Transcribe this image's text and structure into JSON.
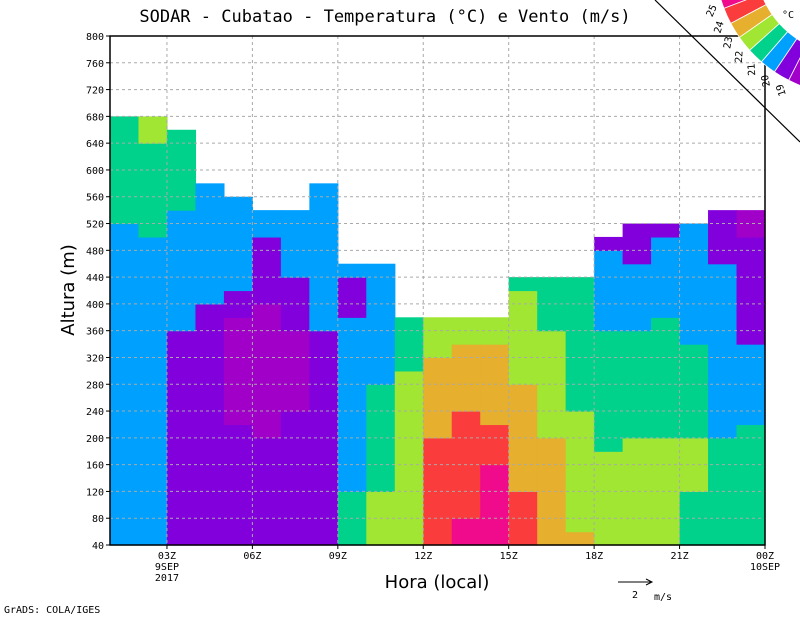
{
  "chart_data": {
    "type": "heatmap",
    "title": "SODAR - Cubatao - Temperatura (°C) e Vento (m/s)",
    "xlabel": "Hora (local)",
    "ylabel": "Altura (m)",
    "ylim": [
      40,
      800
    ],
    "yticks": [
      40,
      80,
      120,
      160,
      200,
      240,
      280,
      320,
      360,
      400,
      440,
      480,
      520,
      560,
      600,
      640,
      680,
      720,
      760,
      800
    ],
    "xlim_hours": [
      1,
      24
    ],
    "xticks": [
      {
        "hour": 3,
        "label": "03Z",
        "sub1": "9SEP",
        "sub2": "2017"
      },
      {
        "hour": 6,
        "label": "06Z"
      },
      {
        "hour": 9,
        "label": "09Z"
      },
      {
        "hour": 12,
        "label": "12Z"
      },
      {
        "hour": 15,
        "label": "15Z"
      },
      {
        "hour": 18,
        "label": "18Z"
      },
      {
        "hour": 21,
        "label": "21Z"
      },
      {
        "hour": 24,
        "label": "00Z",
        "sub1": "10SEP"
      }
    ],
    "grid": true,
    "legend": {
      "unit": "°C",
      "placement": "top-right",
      "boundaries": [
        "25",
        "24",
        "23",
        "22",
        "21",
        "20",
        "19"
      ],
      "classes": [
        {
          "cls": 25,
          "color": "#f00a8c"
        },
        {
          "cls": 24,
          "color": "#fa3c3c"
        },
        {
          "cls": 23,
          "color": "#e6af2d"
        },
        {
          "cls": 22,
          "color": "#a0e632"
        },
        {
          "cls": 21,
          "color": "#00d28c"
        },
        {
          "cls": 20,
          "color": "#00a0ff"
        },
        {
          "cls": 19,
          "color": "#8200dc"
        },
        {
          "cls": 18,
          "color": "#a000c8"
        }
      ]
    },
    "columns": [
      {
        "hour": 1,
        "segments": [
          [
            40,
            520,
            20
          ],
          [
            520,
            680,
            21
          ]
        ]
      },
      {
        "hour": 2,
        "segments": [
          [
            40,
            500,
            20
          ],
          [
            500,
            640,
            21
          ],
          [
            640,
            680,
            22
          ]
        ]
      },
      {
        "hour": 3,
        "segments": [
          [
            40,
            360,
            19
          ],
          [
            360,
            540,
            20
          ],
          [
            540,
            660,
            21
          ]
        ]
      },
      {
        "hour": 4,
        "segments": [
          [
            40,
            400,
            19
          ],
          [
            400,
            580,
            20
          ]
        ]
      },
      {
        "hour": 5,
        "segments": [
          [
            40,
            220,
            19
          ],
          [
            220,
            380,
            18
          ],
          [
            380,
            420,
            19
          ],
          [
            420,
            560,
            20
          ]
        ]
      },
      {
        "hour": 6,
        "segments": [
          [
            40,
            200,
            19
          ],
          [
            200,
            400,
            18
          ],
          [
            400,
            500,
            19
          ],
          [
            500,
            540,
            20
          ]
        ]
      },
      {
        "hour": 7,
        "segments": [
          [
            40,
            240,
            19
          ],
          [
            240,
            360,
            18
          ],
          [
            360,
            440,
            19
          ],
          [
            440,
            540,
            20
          ]
        ]
      },
      {
        "hour": 8,
        "segments": [
          [
            40,
            360,
            19
          ],
          [
            360,
            580,
            20
          ]
        ]
      },
      {
        "hour": 9,
        "segments": [
          [
            40,
            120,
            21
          ],
          [
            120,
            380,
            20
          ],
          [
            380,
            440,
            19
          ],
          [
            440,
            460,
            20
          ]
        ]
      },
      {
        "hour": 10,
        "segments": [
          [
            40,
            120,
            22
          ],
          [
            120,
            280,
            21
          ],
          [
            280,
            460,
            20
          ]
        ]
      },
      {
        "hour": 11,
        "segments": [
          [
            40,
            300,
            22
          ],
          [
            300,
            380,
            21
          ]
        ]
      },
      {
        "hour": 12,
        "segments": [
          [
            40,
            200,
            24
          ],
          [
            200,
            320,
            23
          ],
          [
            320,
            380,
            22
          ]
        ]
      },
      {
        "hour": 13,
        "segments": [
          [
            40,
            80,
            25
          ],
          [
            80,
            240,
            24
          ],
          [
            240,
            340,
            23
          ],
          [
            340,
            380,
            22
          ]
        ]
      },
      {
        "hour": 14,
        "segments": [
          [
            40,
            160,
            25
          ],
          [
            160,
            220,
            24
          ],
          [
            220,
            340,
            23
          ],
          [
            340,
            380,
            22
          ]
        ]
      },
      {
        "hour": 15,
        "segments": [
          [
            40,
            120,
            24
          ],
          [
            120,
            280,
            23
          ],
          [
            280,
            420,
            22
          ],
          [
            420,
            440,
            21
          ]
        ]
      },
      {
        "hour": 16,
        "segments": [
          [
            40,
            200,
            23
          ],
          [
            200,
            360,
            22
          ],
          [
            360,
            440,
            21
          ]
        ]
      },
      {
        "hour": 17,
        "segments": [
          [
            40,
            60,
            23
          ],
          [
            60,
            240,
            22
          ],
          [
            240,
            440,
            21
          ]
        ]
      },
      {
        "hour": 18,
        "segments": [
          [
            40,
            180,
            22
          ],
          [
            180,
            360,
            21
          ],
          [
            360,
            480,
            20
          ],
          [
            480,
            500,
            19
          ]
        ]
      },
      {
        "hour": 19,
        "segments": [
          [
            40,
            200,
            22
          ],
          [
            200,
            360,
            21
          ],
          [
            360,
            460,
            20
          ],
          [
            460,
            520,
            19
          ]
        ]
      },
      {
        "hour": 20,
        "segments": [
          [
            40,
            200,
            22
          ],
          [
            200,
            380,
            21
          ],
          [
            380,
            500,
            20
          ],
          [
            500,
            520,
            19
          ]
        ]
      },
      {
        "hour": 21,
        "segments": [
          [
            40,
            120,
            21
          ],
          [
            120,
            200,
            22
          ],
          [
            200,
            340,
            21
          ],
          [
            340,
            520,
            20
          ]
        ]
      },
      {
        "hour": 22,
        "segments": [
          [
            40,
            200,
            21
          ],
          [
            200,
            460,
            20
          ],
          [
            460,
            540,
            19
          ]
        ]
      },
      {
        "hour": 23,
        "segments": [
          [
            40,
            220,
            21
          ],
          [
            220,
            340,
            20
          ],
          [
            340,
            500,
            19
          ],
          [
            500,
            540,
            18
          ]
        ]
      }
    ],
    "wind_reference": {
      "value": "2",
      "unit": "m/s"
    }
  },
  "footer": "GrADS: COLA/IGES"
}
